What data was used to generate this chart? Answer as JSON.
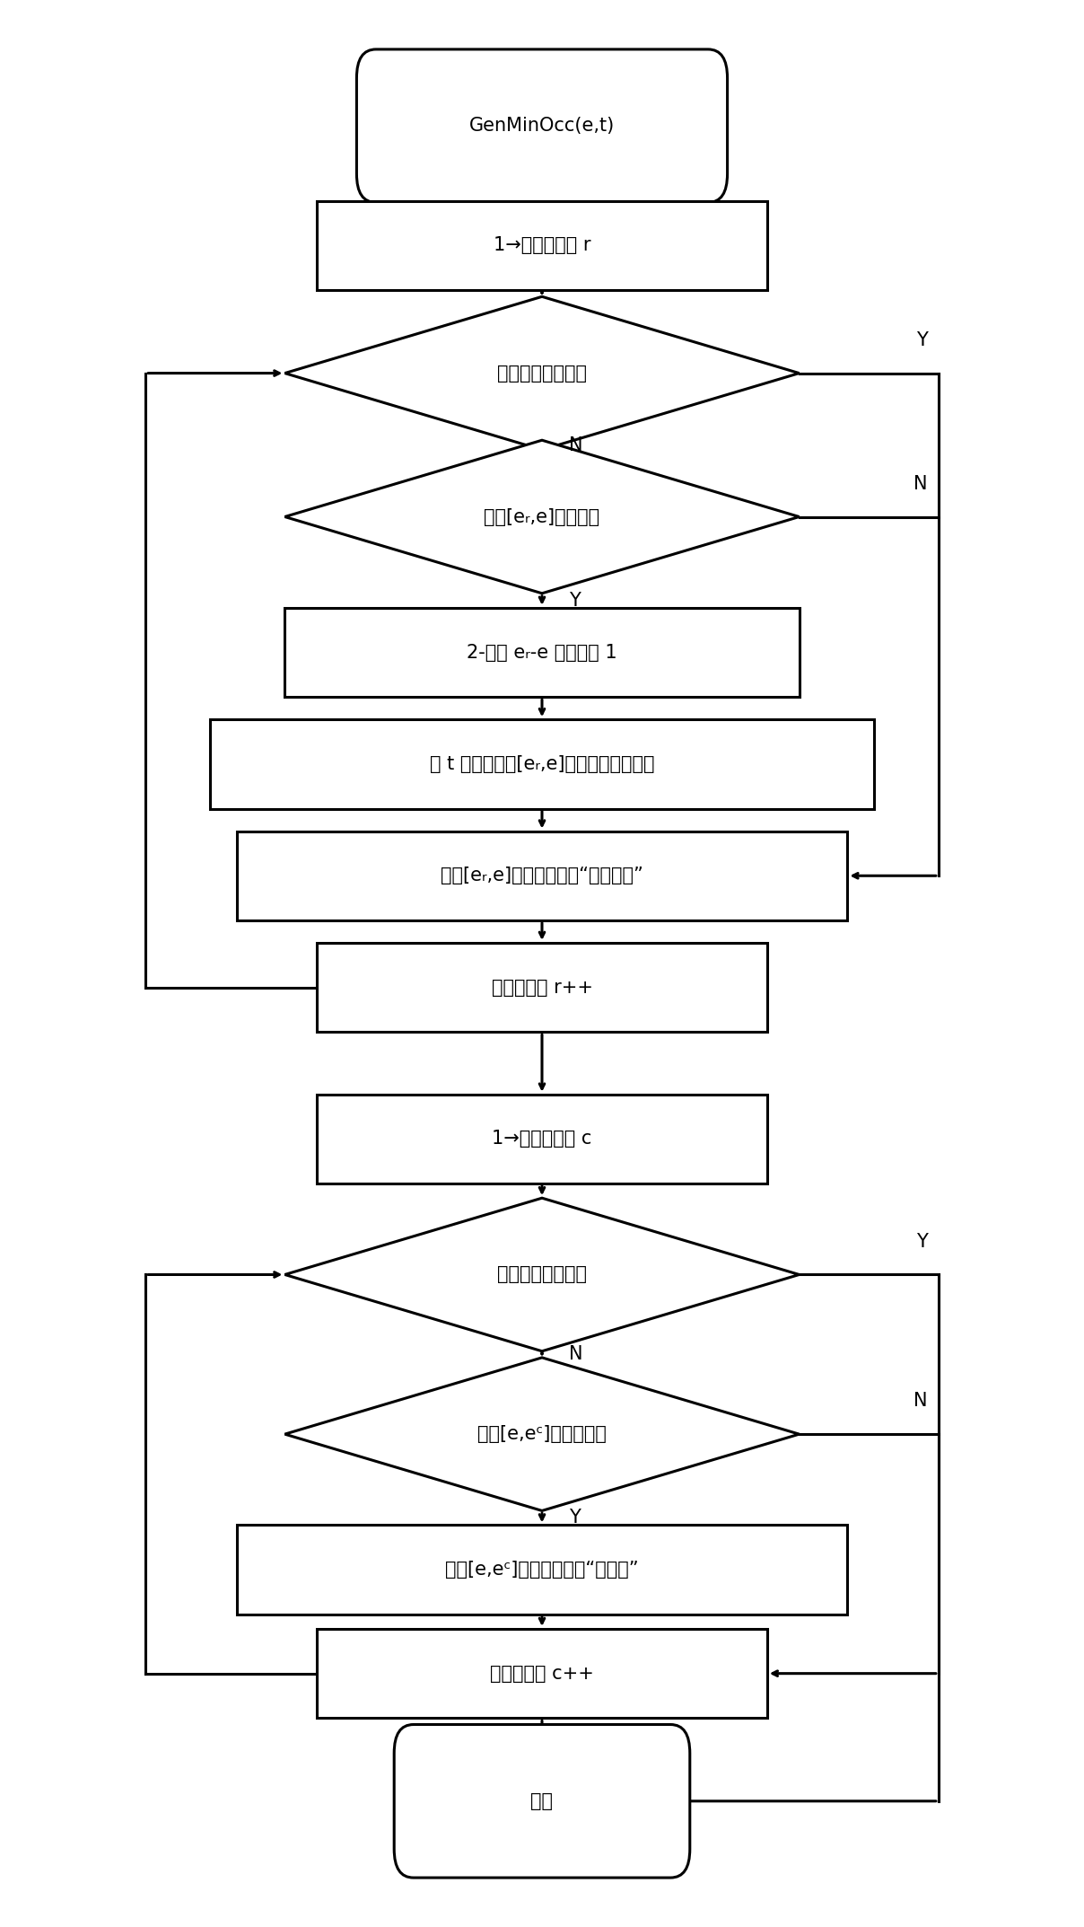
{
  "bg_color": "#ffffff",
  "line_color": "#000000",
  "text_color": "#000000",
  "node_start": "GenMinOcc(e,t)",
  "node_init_r": "1→矩阵行索引 r",
  "node_dec1": "所有行都处理完？",
  "node_dec2": "元素[eᵣ,e]可修改？",
  "node_box1": "2-情节 eᵣ-e 的计数加 1",
  "node_box2": "将 t 追加到元素[eᵣ,e]的时间戟队列尾部",
  "node_box3": "元素[eᵣ,e]的状态设置为“不可修改”",
  "node_box4": "矩阵行索引 r++",
  "node_init_c": "1→矩阵列索引 c",
  "node_dec3": "所有列都处理完？",
  "node_dec4": "元素[e,eᶜ]不可修改？",
  "node_box5": "元素[e,eᶜ]的状态设置为“可修改”",
  "node_box6": "矩阵列索引 c++",
  "node_end": "返回",
  "label_Y": "Y",
  "label_N": "N"
}
